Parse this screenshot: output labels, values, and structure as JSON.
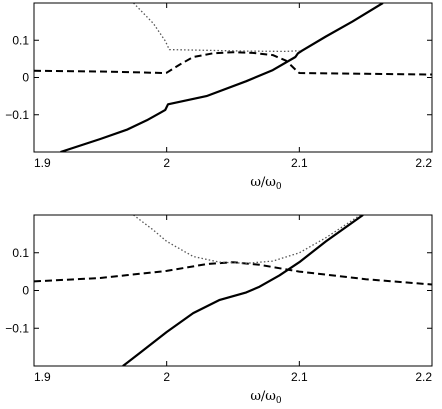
{
  "chart_data": [
    {
      "type": "line",
      "title": "",
      "xlabel": "ω/ω",
      "xlabel_subscript": "0",
      "ylabel": "",
      "xlim": [
        1.9,
        2.2
      ],
      "ylim": [
        -0.2,
        0.2
      ],
      "x_ticks": [
        1.9,
        2.0,
        2.1,
        2.2
      ],
      "x_tick_labels": [
        "1.9",
        "2",
        "2.1",
        "2.2"
      ],
      "y_ticks": [
        -0.1,
        0,
        0.1
      ],
      "y_tick_labels": [
        "−0.1",
        "0",
        "0.1"
      ],
      "grid": false,
      "series": [
        {
          "style": "solid",
          "points": [
            [
              1.92,
              -0.2
            ],
            [
              1.95,
              -0.165
            ],
            [
              1.97,
              -0.14
            ],
            [
              1.985,
              -0.115
            ],
            [
              1.995,
              -0.095
            ],
            [
              1.999,
              -0.087
            ],
            [
              2.001,
              -0.072
            ],
            [
              2.03,
              -0.05
            ],
            [
              2.06,
              -0.01
            ],
            [
              2.08,
              0.02
            ],
            [
              2.097,
              0.055
            ],
            [
              2.099,
              0.065
            ],
            [
              2.102,
              0.072
            ],
            [
              2.12,
              0.11
            ],
            [
              2.14,
              0.15
            ],
            [
              2.163,
              0.2
            ]
          ]
        },
        {
          "style": "dashed",
          "points": [
            [
              1.9,
              0.018
            ],
            [
              1.95,
              0.016
            ],
            [
              1.998,
              0.012
            ],
            [
              2.0,
              0.013
            ],
            [
              2.01,
              0.035
            ],
            [
              2.02,
              0.055
            ],
            [
              2.035,
              0.065
            ],
            [
              2.05,
              0.068
            ],
            [
              2.065,
              0.066
            ],
            [
              2.08,
              0.06
            ],
            [
              2.09,
              0.045
            ],
            [
              2.098,
              0.018
            ],
            [
              2.1,
              0.012
            ],
            [
              2.15,
              0.01
            ],
            [
              2.2,
              0.008
            ]
          ]
        },
        {
          "style": "dotted",
          "points": [
            [
              1.975,
              0.2
            ],
            [
              1.99,
              0.145
            ],
            [
              1.999,
              0.098
            ],
            [
              2.002,
              0.075
            ],
            [
              2.03,
              0.073
            ],
            [
              2.06,
              0.071
            ],
            [
              2.09,
              0.07
            ],
            [
              2.1,
              0.072
            ]
          ]
        }
      ]
    },
    {
      "type": "line",
      "title": "",
      "xlabel": "ω/ω",
      "xlabel_subscript": "0",
      "ylabel": "",
      "xlim": [
        1.9,
        2.2
      ],
      "ylim": [
        -0.2,
        0.2
      ],
      "x_ticks": [
        1.9,
        2.0,
        2.1,
        2.2
      ],
      "x_tick_labels": [
        "1.9",
        "2",
        "2.1",
        "2.2"
      ],
      "y_ticks": [
        -0.1,
        0,
        0.1
      ],
      "y_tick_labels": [
        "−0.1",
        "0",
        "0.1"
      ],
      "grid": false,
      "series": [
        {
          "style": "solid",
          "points": [
            [
              1.967,
              -0.2
            ],
            [
              1.98,
              -0.165
            ],
            [
              2.0,
              -0.11
            ],
            [
              2.02,
              -0.06
            ],
            [
              2.04,
              -0.025
            ],
            [
              2.06,
              -0.005
            ],
            [
              2.07,
              0.01
            ],
            [
              2.085,
              0.04
            ],
            [
              2.1,
              0.075
            ],
            [
              2.12,
              0.13
            ],
            [
              2.148,
              0.2
            ]
          ]
        },
        {
          "style": "dashed",
          "points": [
            [
              1.9,
              0.024
            ],
            [
              1.95,
              0.033
            ],
            [
              2.0,
              0.052
            ],
            [
              2.03,
              0.07
            ],
            [
              2.05,
              0.075
            ],
            [
              2.07,
              0.068
            ],
            [
              2.1,
              0.05
            ],
            [
              2.15,
              0.03
            ],
            [
              2.2,
              0.016
            ]
          ]
        },
        {
          "style": "dotted",
          "points": [
            [
              1.975,
              0.2
            ],
            [
              1.99,
              0.16
            ],
            [
              2.0,
              0.13
            ],
            [
              2.02,
              0.09
            ],
            [
              2.04,
              0.075
            ],
            [
              2.06,
              0.072
            ],
            [
              2.08,
              0.078
            ],
            [
              2.1,
              0.1
            ],
            [
              2.12,
              0.14
            ],
            [
              2.146,
              0.2
            ]
          ]
        }
      ]
    }
  ]
}
